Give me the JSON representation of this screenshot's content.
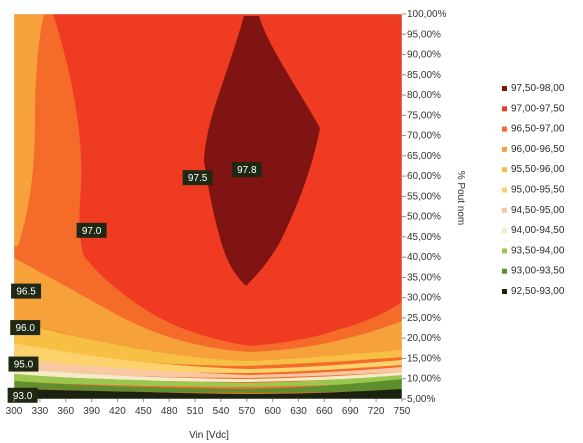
{
  "chart_data": {
    "type": "heatmap",
    "title": "",
    "xlabel": "Vin [Vdc]",
    "ylabel": "% Pout nom",
    "x_ticks": [
      "300",
      "330",
      "360",
      "390",
      "420",
      "450",
      "480",
      "510",
      "540",
      "570",
      "600",
      "630",
      "660",
      "690",
      "720",
      "750"
    ],
    "y_ticks": [
      "100,00%",
      "95,00%",
      "90,00%",
      "85,00%",
      "80,00%",
      "75,00%",
      "70,00%",
      "65,00%",
      "60,00%",
      "55,00%",
      "50,00%",
      "45,00%",
      "40,00%",
      "35,00%",
      "30,00%",
      "25,00%",
      "20,00%",
      "15,00%",
      "10,00%",
      "5,00%"
    ],
    "xlim": [
      300,
      750
    ],
    "ylim": [
      5,
      100
    ],
    "legend_position": "right",
    "legend": [
      {
        "label": "97,50-98,00",
        "color": "#7f1412"
      },
      {
        "label": "97,00-97,50",
        "color": "#ef3b21"
      },
      {
        "label": "96,50-97,00",
        "color": "#f46b2a"
      },
      {
        "label": "96,00-96,50",
        "color": "#f6a13a"
      },
      {
        "label": "95,50-96,00",
        "color": "#f8bf45"
      },
      {
        "label": "95,00-95,50",
        "color": "#fbd26c"
      },
      {
        "label": "94,50-95,00",
        "color": "#f7c8a2"
      },
      {
        "label": "94,00-94,50",
        "color": "#f4ecc8"
      },
      {
        "label": "93,50-94,00",
        "color": "#9ac84f"
      },
      {
        "label": "93,00-93,50",
        "color": "#5e8e2e"
      },
      {
        "label": "92,50-93,00",
        "color": "#1c2210"
      }
    ],
    "contour_labels": [
      {
        "text": "97.8",
        "x": 570,
        "y": 61.5
      },
      {
        "text": "97.5",
        "x": 513,
        "y": 59.5
      },
      {
        "text": "97.0",
        "x": 390,
        "y": 46.5
      },
      {
        "text": "96.5",
        "x": 314,
        "y": 31.5
      },
      {
        "text": "96.0",
        "x": 313,
        "y": 22.5
      },
      {
        "text": "95.0",
        "x": 311,
        "y": 13.5
      },
      {
        "text": "93.0",
        "x": 310,
        "y": 5.8
      }
    ]
  }
}
